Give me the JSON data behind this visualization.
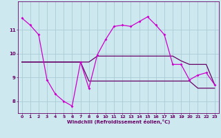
{
  "xlabel": "Windchill (Refroidissement éolien,°C)",
  "background_color": "#cde8ee",
  "grid_color": "#aaccd8",
  "line_color_main": "#cc00cc",
  "line_color_dark": "#660066",
  "x_data": [
    0,
    1,
    2,
    3,
    4,
    5,
    6,
    7,
    8,
    9,
    10,
    11,
    12,
    13,
    14,
    15,
    16,
    17,
    18,
    19,
    20,
    21,
    22,
    23
  ],
  "y_temp": [
    11.5,
    11.2,
    10.8,
    8.9,
    8.3,
    8.0,
    7.8,
    9.65,
    8.55,
    9.95,
    10.6,
    11.15,
    11.2,
    11.15,
    11.35,
    11.55,
    11.2,
    10.8,
    9.55,
    9.55,
    8.9,
    9.1,
    9.2,
    8.7
  ],
  "y_min": [
    9.65,
    9.65,
    9.65,
    9.65,
    9.65,
    9.65,
    9.65,
    9.65,
    8.85,
    8.85,
    8.85,
    8.85,
    8.85,
    8.85,
    8.85,
    8.85,
    8.85,
    8.85,
    8.85,
    8.85,
    8.85,
    8.55,
    8.55,
    8.55
  ],
  "y_max": [
    9.65,
    9.65,
    9.65,
    9.65,
    9.65,
    9.65,
    9.65,
    9.65,
    9.65,
    9.9,
    9.9,
    9.9,
    9.9,
    9.9,
    9.9,
    9.9,
    9.9,
    9.9,
    9.9,
    9.7,
    9.55,
    9.55,
    9.55,
    8.7
  ],
  "ylim": [
    7.5,
    12.2
  ],
  "xlim": [
    -0.5,
    23.5
  ],
  "yticks": [
    8,
    9,
    10,
    11
  ],
  "xticks": [
    0,
    1,
    2,
    3,
    4,
    5,
    6,
    7,
    8,
    9,
    10,
    11,
    12,
    13,
    14,
    15,
    16,
    17,
    18,
    19,
    20,
    21,
    22,
    23
  ],
  "tick_fontsize": 4.5,
  "xlabel_fontsize": 5.0
}
